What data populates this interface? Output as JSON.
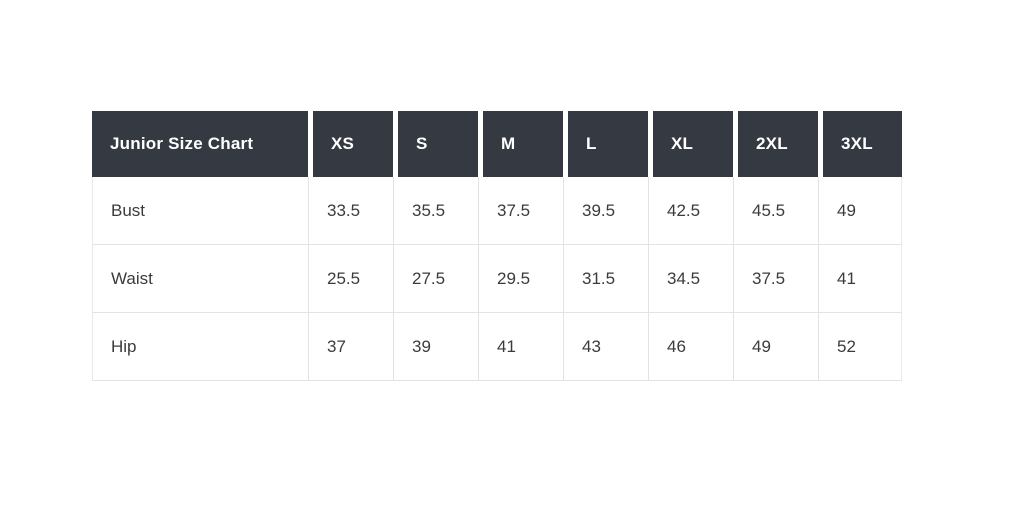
{
  "page": {
    "background_color": "#ffffff"
  },
  "table": {
    "title": "Junior Size Chart",
    "size_columns": [
      "XS",
      "S",
      "M",
      "L",
      "XL",
      "2XL",
      "3XL"
    ],
    "rows": [
      {
        "label": "Bust",
        "values": [
          "33.5",
          "35.5",
          "37.5",
          "39.5",
          "42.5",
          "45.5",
          "49"
        ]
      },
      {
        "label": "Waist",
        "values": [
          "25.5",
          "27.5",
          "29.5",
          "31.5",
          "34.5",
          "37.5",
          "41"
        ]
      },
      {
        "label": "Hip",
        "values": [
          "37",
          "39",
          "41",
          "43",
          "46",
          "49",
          "52"
        ]
      }
    ],
    "colors": {
      "header_background": "#353a42",
      "header_text": "#ffffff",
      "body_text": "#3b3b3b",
      "border": "#e3e3e3"
    }
  },
  "chart_data": {
    "type": "table",
    "title": "Junior Size Chart",
    "columns": [
      "Junior Size Chart",
      "XS",
      "S",
      "M",
      "L",
      "XL",
      "2XL",
      "3XL"
    ],
    "rows": [
      [
        "Bust",
        33.5,
        35.5,
        37.5,
        39.5,
        42.5,
        45.5,
        49
      ],
      [
        "Waist",
        25.5,
        27.5,
        29.5,
        31.5,
        34.5,
        37.5,
        41
      ],
      [
        "Hip",
        37,
        39,
        41,
        43,
        46,
        49,
        52
      ]
    ]
  }
}
